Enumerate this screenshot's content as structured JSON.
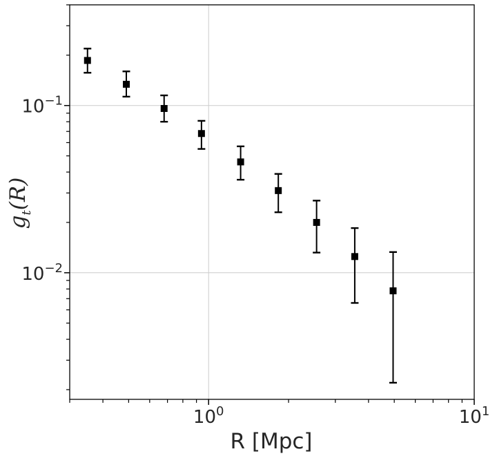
{
  "chart_data": {
    "type": "scatter",
    "title": "",
    "xlabel": "R [Mpc]",
    "ylabel": {
      "base": "g",
      "sub": "t",
      "arg": "(R)"
    },
    "xscale": "log",
    "yscale": "log",
    "xlim": [
      0.3,
      10
    ],
    "ylim": [
      0.00175,
      0.4
    ],
    "grid": true,
    "xticks": [
      {
        "value": 1,
        "base": "10",
        "exp": "0"
      },
      {
        "value": 10,
        "base": "10",
        "exp": "1"
      }
    ],
    "yticks": [
      {
        "value": 0.1,
        "base": "10",
        "exp": "−1"
      },
      {
        "value": 0.01,
        "base": "10",
        "exp": "−2"
      }
    ],
    "series": [
      {
        "marker": "square",
        "color": "#000000",
        "x": [
          0.35,
          0.49,
          0.68,
          0.94,
          1.32,
          1.83,
          2.55,
          3.55,
          4.95
        ],
        "y": [
          0.186,
          0.134,
          0.096,
          0.068,
          0.046,
          0.031,
          0.02,
          0.0125,
          0.0078
        ],
        "yerr_lower": [
          0.157,
          0.113,
          0.08,
          0.055,
          0.036,
          0.023,
          0.0132,
          0.0066,
          0.0022
        ],
        "yerr_upper": [
          0.219,
          0.16,
          0.115,
          0.081,
          0.057,
          0.039,
          0.027,
          0.0185,
          0.0133
        ]
      }
    ]
  }
}
